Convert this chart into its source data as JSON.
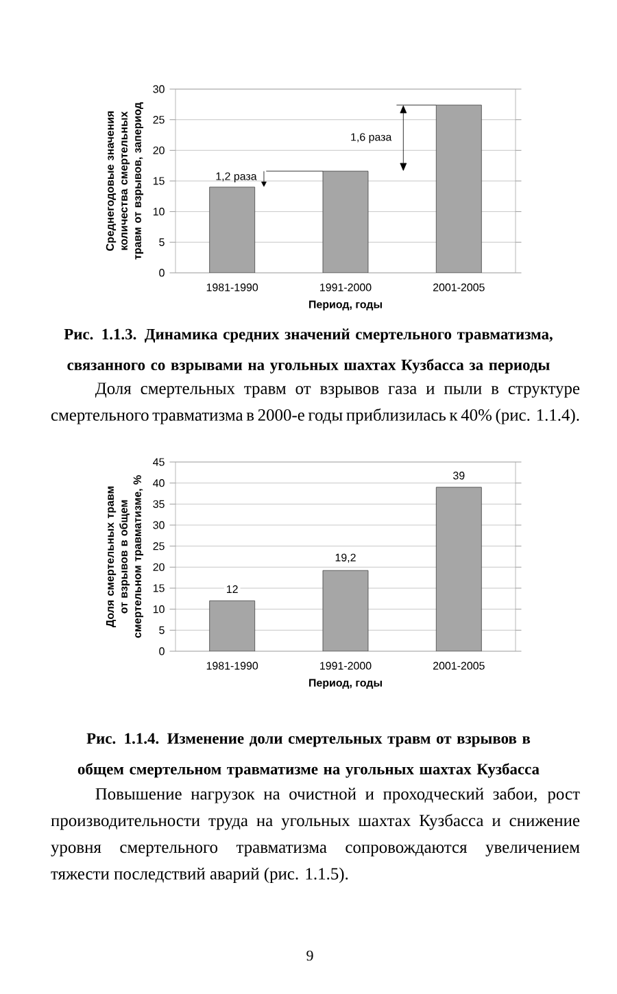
{
  "chart_data": [
    {
      "type": "bar",
      "title": "Рис. 1.1.3. Динамика средних значений смертельного травматизма, связанного со взрывами на угольных шахтах Кузбасса за периоды",
      "ylabel": "Среднегодовые значения количества смертельных травм от взрывов, запериод",
      "xlabel": "Период, годы",
      "categories": [
        "1981-1990",
        "1991-2000",
        "2001-2005"
      ],
      "values": [
        14,
        16.6,
        27.4
      ],
      "color": "#a6a6a6",
      "ylim": [
        0,
        30
      ],
      "yticks": [
        0,
        5,
        10,
        15,
        20,
        25,
        30
      ],
      "grid": "y",
      "annotations": [
        {
          "text": "1,2 раза",
          "x": "1981-1990",
          "y": 14
        },
        "1,6 раза",
        "Доля смертельных травм от взрывов газа и пыли в структуре смертельного травматизма в 2000-е годы приблизилась к 40% (рис. 1.1.4)."
      ]
    },
    {
      "type": "bar",
      "title": "Рис. 1.1.4. Изменение доли смертельных травм от взрывов в общем смертельном травматизме на угольных шахтах Кузбасса",
      "ylabel": "Доля смертельных травм от взрывов в общем смертельном травматизме, %",
      "xlabel": "Период, годы",
      "categories": [
        "1981-1990",
        "1991-2000",
        "2001-2005"
      ],
      "values": [
        12,
        19.2,
        39
      ],
      "value_labels": [
        "12",
        "19,2",
        "39"
      ],
      "color": "#a6a6a6",
      "ylim": [
        0,
        45
      ],
      "yticks": [
        0,
        5,
        10,
        15,
        20,
        25,
        30,
        35,
        40,
        45
      ],
      "grid": "y",
      "annotations": [
        "Повышение нагрузок на очистной и проходческий забои, рост производительности труда на угольных шахтах Кузбасса и снижение уровня смертельного травматизма сопровождаются увеличением тяжести последствий аварий (рис. 1.1.5).",
        "9"
      ]
    }
  ]
}
